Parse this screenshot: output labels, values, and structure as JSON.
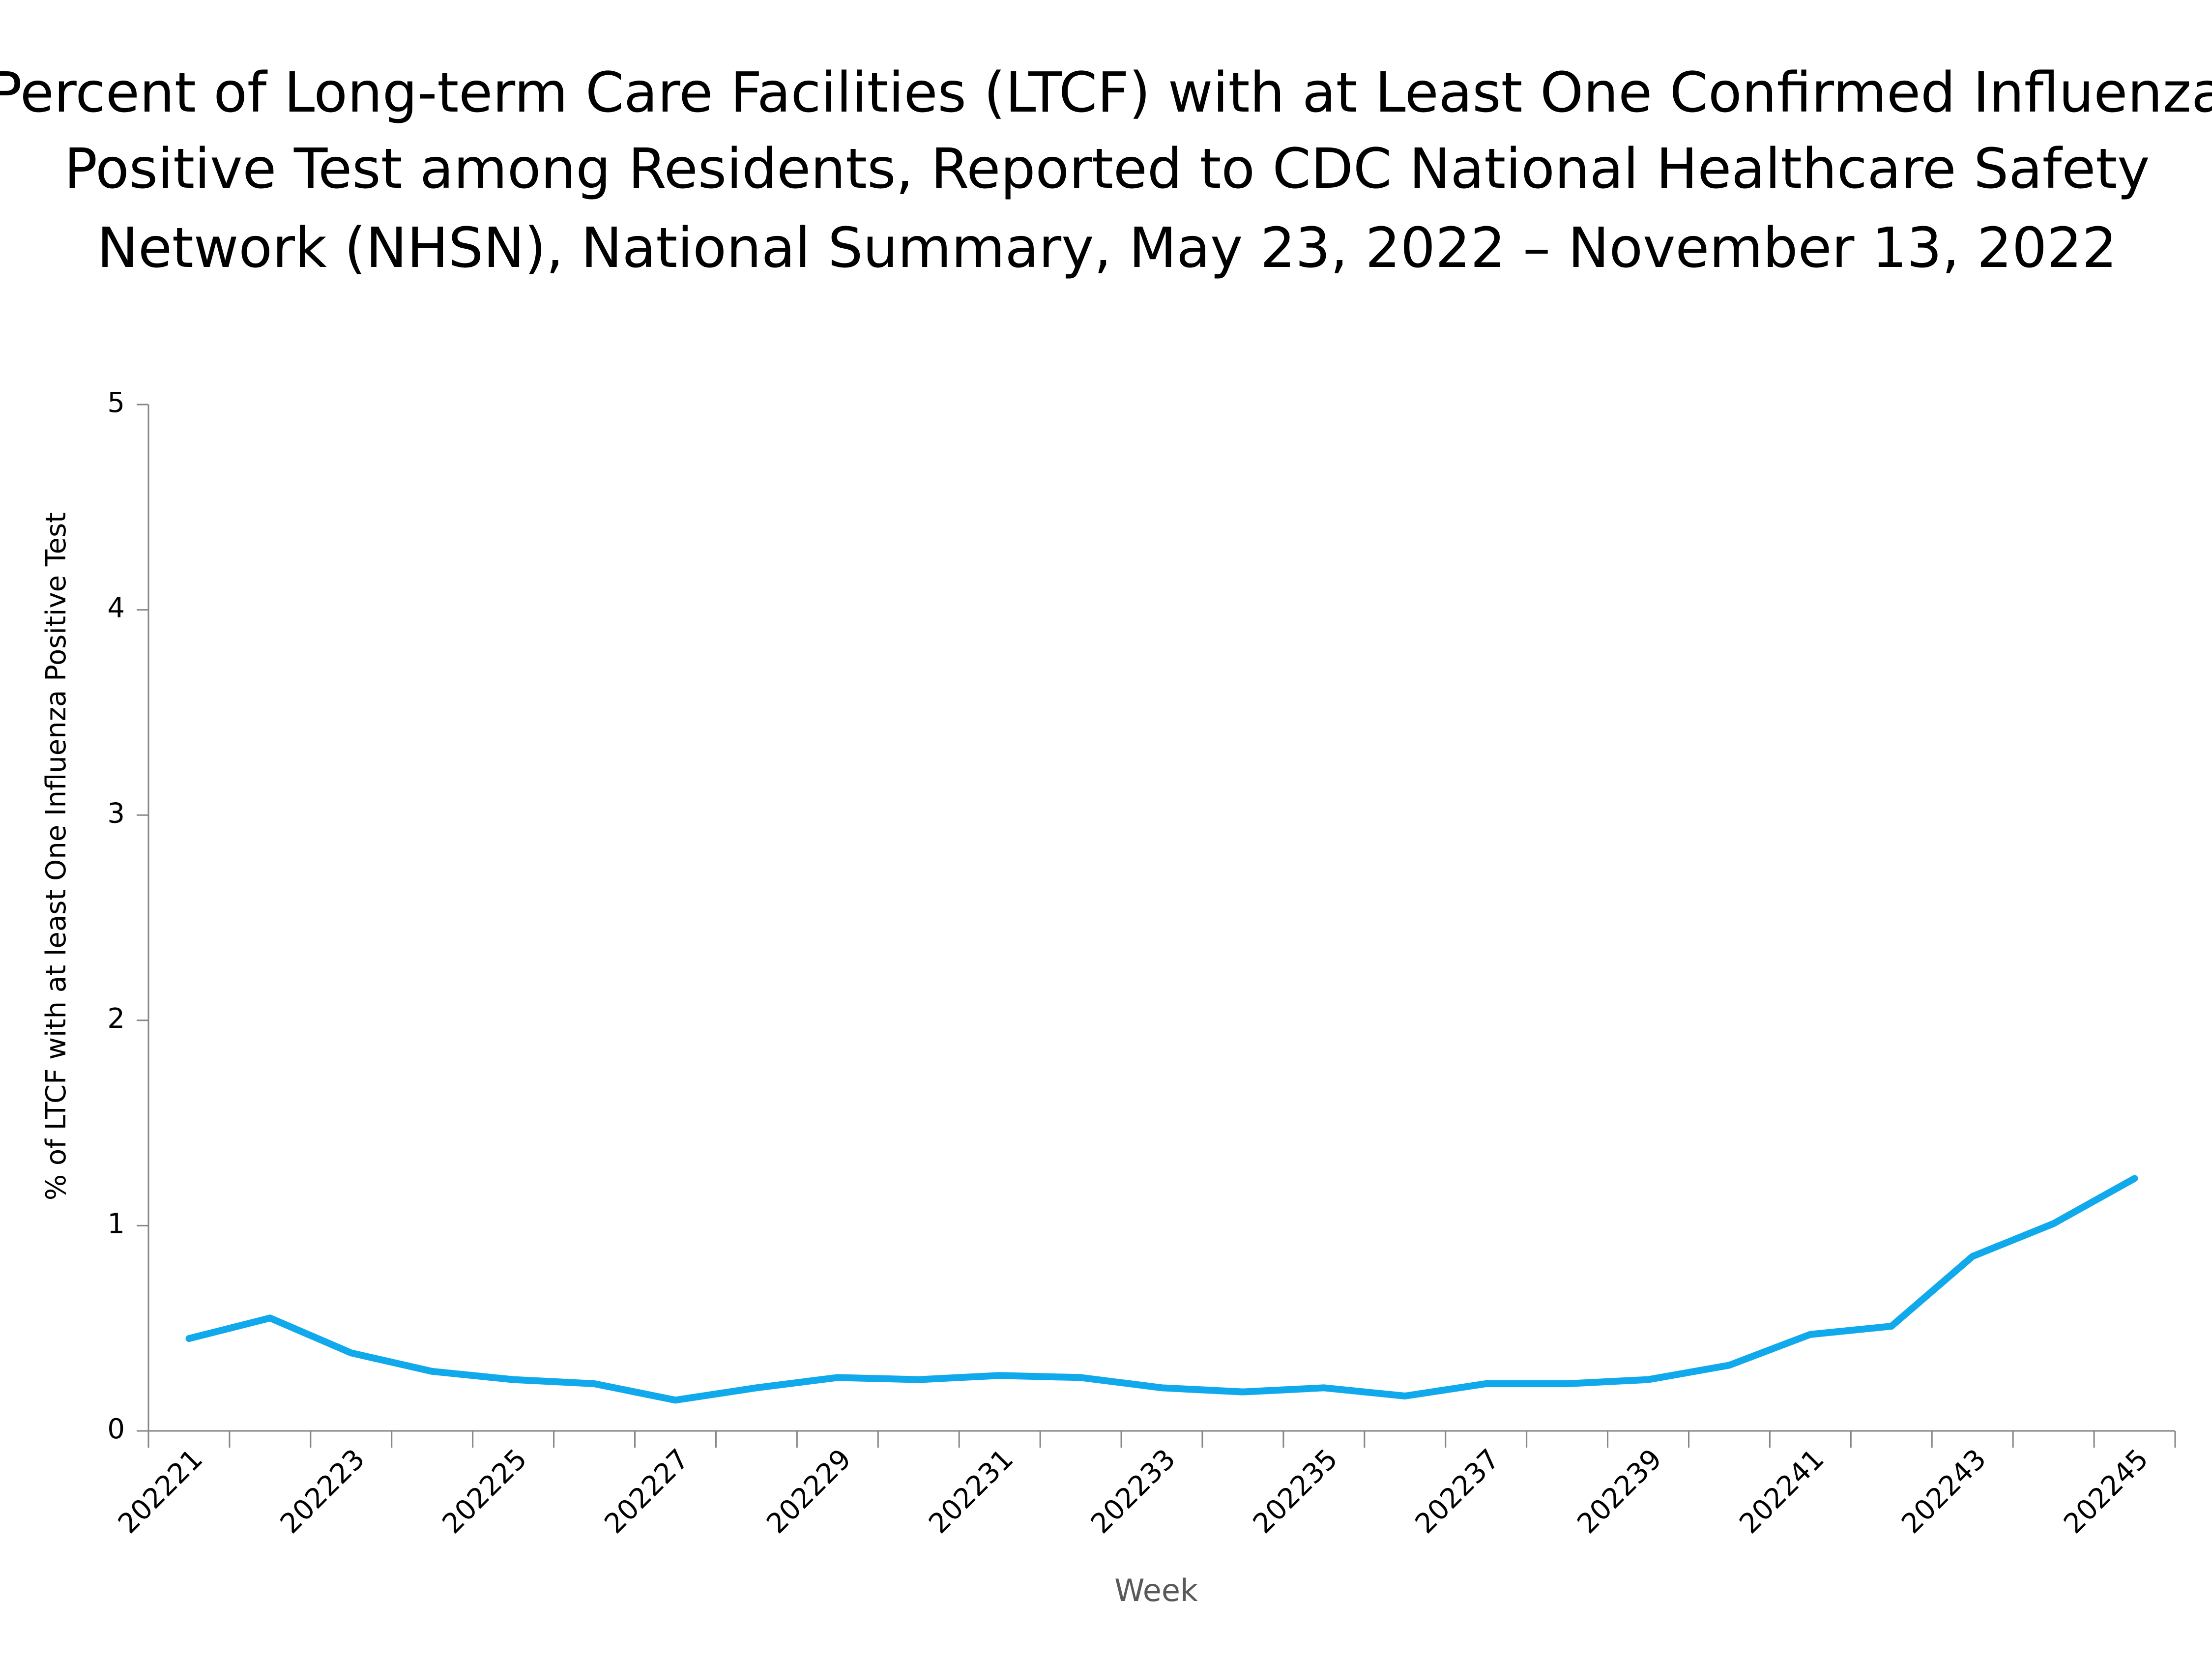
{
  "chart_data": {
    "type": "line",
    "title": [
      "Percent of Long-term Care Facilities (LTCF) with at Least One Confirmed Influenza",
      "Positive Test among Residents, Reported to CDC National Healthcare Safety",
      "Network (NHSN), National Summary, May 23, 2022 – November 13, 2022"
    ],
    "x_label": "Week",
    "y_label": "% of LTCF with at least One Influenza Positive Test",
    "categories": [
      "202221",
      null,
      "202223",
      null,
      "202225",
      null,
      "202227",
      null,
      "202229",
      null,
      "202231",
      null,
      "202233",
      null,
      "202235",
      null,
      "202237",
      null,
      "202239",
      null,
      "202241",
      null,
      "202243",
      null,
      "202245"
    ],
    "series": [
      {
        "name": "LTCF",
        "color": "#0fa9ec",
        "values": [
          0.45,
          0.55,
          0.38,
          0.29,
          0.25,
          0.23,
          0.15,
          0.21,
          0.26,
          0.25,
          0.27,
          0.26,
          0.21,
          0.19,
          0.21,
          0.17,
          0.23,
          0.23,
          0.25,
          0.32,
          0.47,
          0.51,
          0.85,
          1.01,
          1.23
        ]
      }
    ],
    "ylim": [
      0,
      5
    ],
    "yticks": [
      0,
      1,
      2,
      3,
      4,
      5
    ],
    "grid": false
  }
}
